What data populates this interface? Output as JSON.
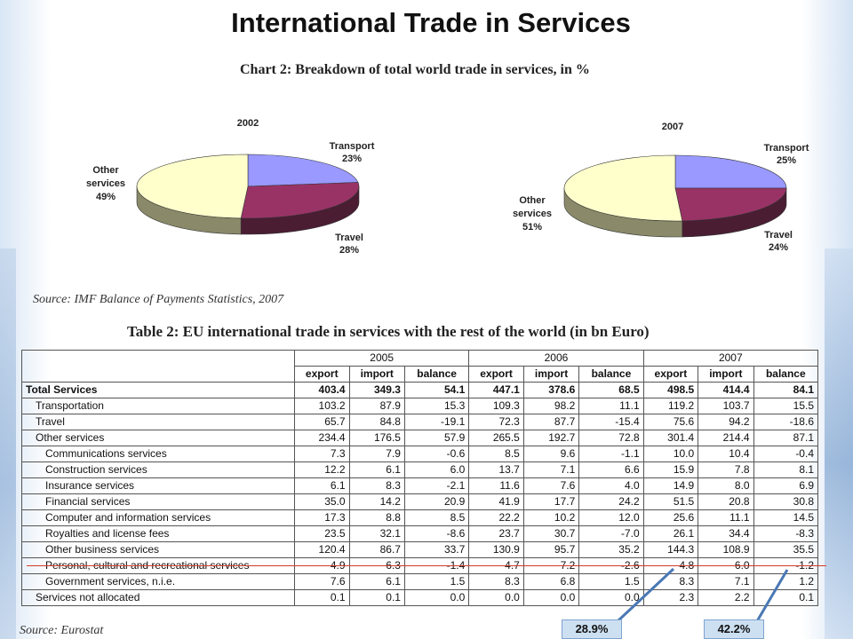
{
  "page_title": "International Trade in Services",
  "chart_title": "Chart 2: Breakdown of total world trade in services, in %",
  "source_imf": "Source: IMF Balance of Payments Statistics, 2007",
  "table_title": "Table 2: EU international trade in services with the rest of the world (in bn Euro)",
  "source_eurostat": "Source: Eurostat",
  "callouts": [
    "28.9%",
    "42.2%"
  ],
  "colors": {
    "transport": "#9999ff",
    "travel": "#993366",
    "other": "#ffffcc",
    "callout_bg": "#cde0f2",
    "red_line": "#d23a2a"
  },
  "chart_data": [
    {
      "type": "pie",
      "title": "2002",
      "categories": [
        "Transport",
        "Travel",
        "Other services"
      ],
      "values": [
        23,
        28,
        49
      ],
      "labels": [
        {
          "line1": "Transport",
          "line2": "23%"
        },
        {
          "line1": "Travel",
          "line2": "28%"
        },
        {
          "line1": "Other",
          "line1b": "services",
          "line2": "49%"
        }
      ]
    },
    {
      "type": "pie",
      "title": "2007",
      "categories": [
        "Transport",
        "Travel",
        "Other services"
      ],
      "values": [
        25,
        24,
        51
      ],
      "labels": [
        {
          "line1": "Transport",
          "line2": "25%"
        },
        {
          "line1": "Travel",
          "line2": "24%"
        },
        {
          "line1": "Other",
          "line1b": "services",
          "line2": "51%"
        }
      ]
    },
    {
      "type": "table",
      "years": [
        "2005",
        "2006",
        "2007"
      ],
      "subheaders": [
        "export",
        "import",
        "balance"
      ],
      "rows": [
        {
          "label": "Total Services",
          "values": [
            "403.4",
            "349.3",
            "54.1",
            "447.1",
            "378.6",
            "68.5",
            "498.5",
            "414.4",
            "84.1"
          ]
        },
        {
          "label": "Transportation",
          "values": [
            "103.2",
            "87.9",
            "15.3",
            "109.3",
            "98.2",
            "11.1",
            "119.2",
            "103.7",
            "15.5"
          ]
        },
        {
          "label": "Travel",
          "values": [
            "65.7",
            "84.8",
            "-19.1",
            "72.3",
            "87.7",
            "-15.4",
            "75.6",
            "94.2",
            "-18.6"
          ]
        },
        {
          "label": "Other services",
          "values": [
            "234.4",
            "176.5",
            "57.9",
            "265.5",
            "192.7",
            "72.8",
            "301.4",
            "214.4",
            "87.1"
          ]
        },
        {
          "label": "Communications services",
          "values": [
            "7.3",
            "7.9",
            "-0.6",
            "8.5",
            "9.6",
            "-1.1",
            "10.0",
            "10.4",
            "-0.4"
          ]
        },
        {
          "label": "Construction services",
          "values": [
            "12.2",
            "6.1",
            "6.0",
            "13.7",
            "7.1",
            "6.6",
            "15.9",
            "7.8",
            "8.1"
          ]
        },
        {
          "label": "Insurance services",
          "values": [
            "6.1",
            "8.3",
            "-2.1",
            "11.6",
            "7.6",
            "4.0",
            "14.9",
            "8.0",
            "6.9"
          ]
        },
        {
          "label": "Financial services",
          "values": [
            "35.0",
            "14.2",
            "20.9",
            "41.9",
            "17.7",
            "24.2",
            "51.5",
            "20.8",
            "30.8"
          ]
        },
        {
          "label": "Computer and information services",
          "values": [
            "17.3",
            "8.8",
            "8.5",
            "22.2",
            "10.2",
            "12.0",
            "25.6",
            "11.1",
            "14.5"
          ]
        },
        {
          "label": "Royalties and license fees",
          "values": [
            "23.5",
            "32.1",
            "-8.6",
            "23.7",
            "30.7",
            "-7.0",
            "26.1",
            "34.4",
            "-8.3"
          ]
        },
        {
          "label": "Other business services",
          "values": [
            "120.4",
            "86.7",
            "33.7",
            "130.9",
            "95.7",
            "35.2",
            "144.3",
            "108.9",
            "35.5"
          ]
        },
        {
          "label": "Personal, cultural and recreational services",
          "values": [
            "4.9",
            "6.3",
            "-1.4",
            "4.7",
            "7.2",
            "-2.6",
            "4.8",
            "6.0",
            "-1.2"
          ]
        },
        {
          "label": "Government services, n.i.e.",
          "values": [
            "7.6",
            "6.1",
            "1.5",
            "8.3",
            "6.8",
            "1.5",
            "8.3",
            "7.1",
            "1.2"
          ]
        },
        {
          "label": "Services not allocated",
          "values": [
            "0.1",
            "0.1",
            "0.0",
            "0.0",
            "0.0",
            "0.0",
            "2.3",
            "2.2",
            "0.1"
          ]
        }
      ]
    }
  ]
}
